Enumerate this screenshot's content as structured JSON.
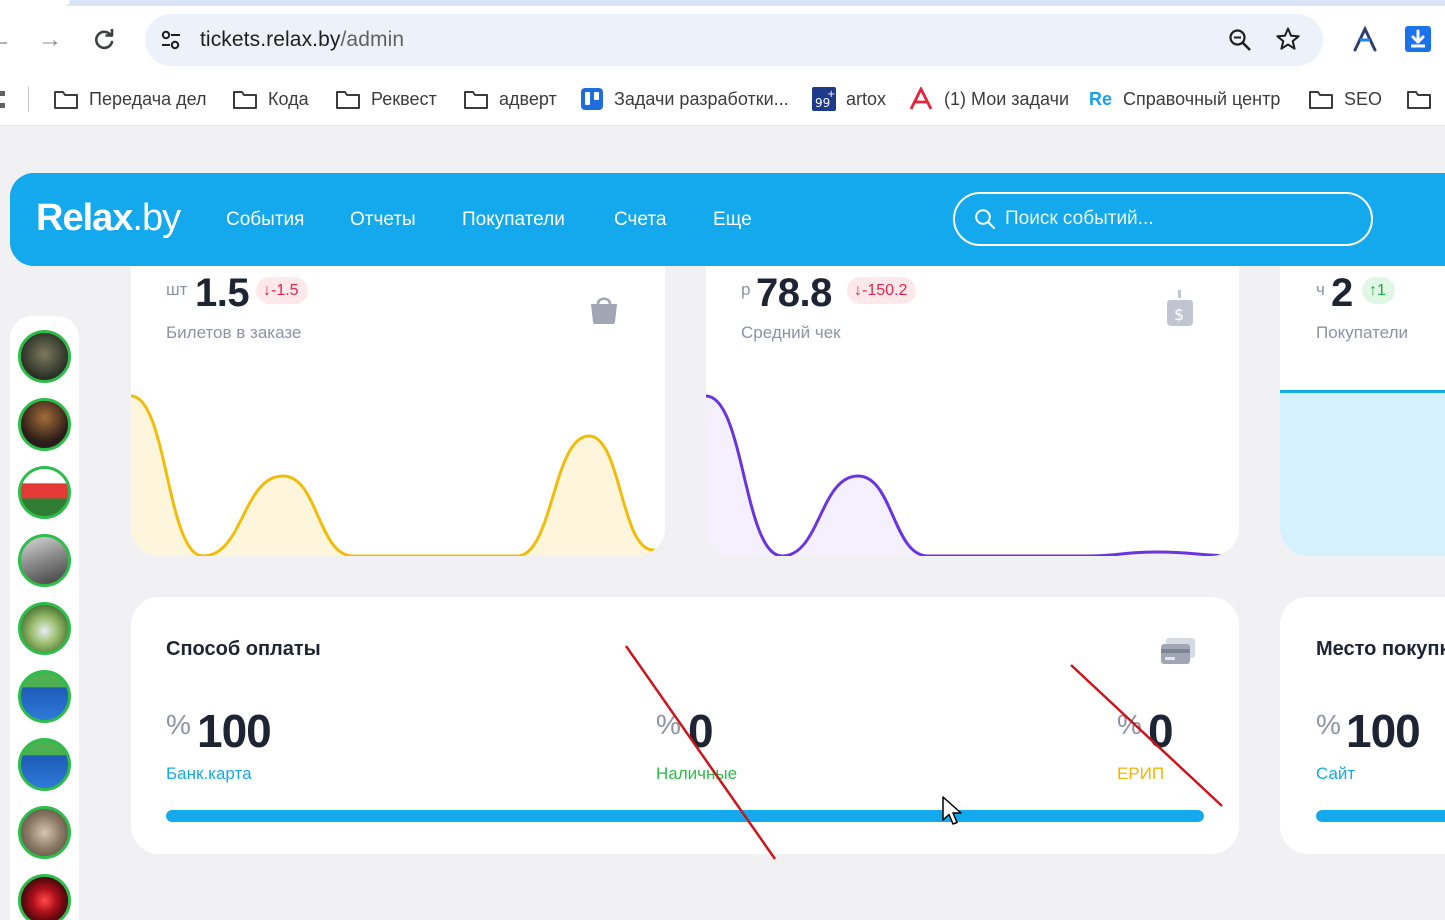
{
  "browser": {
    "url_host": "tickets.relax.by",
    "url_path": "/admin",
    "bookmarks": [
      {
        "label": "Передача дел",
        "icon": "folder-icon"
      },
      {
        "label": "Кода",
        "icon": "folder-icon"
      },
      {
        "label": "Реквест",
        "icon": "folder-icon"
      },
      {
        "label": "адверт",
        "icon": "folder-icon"
      },
      {
        "label": "Задачи разработки...",
        "icon": "trello-icon"
      },
      {
        "label": "artox",
        "icon": "artox-99-icon"
      },
      {
        "label": "(1) Мои задачи",
        "icon": "asana-a-icon"
      },
      {
        "label": "Справочный центр",
        "icon": "re-logo-icon"
      },
      {
        "label": "SEO",
        "icon": "folder-icon"
      }
    ]
  },
  "header": {
    "logo_main": "Relax",
    "logo_suffix": ".by",
    "nav": [
      "События",
      "Отчеты",
      "Покупатели",
      "Счета",
      "Еще"
    ],
    "search_placeholder": "Поиск событий..."
  },
  "stats": {
    "tickets": {
      "unit": "шт",
      "value": "1.5",
      "delta": "-1.5",
      "label": "Билетов в заказе",
      "icon": "shopping-bag-icon"
    },
    "avg_check": {
      "unit": "р",
      "value": "78.8",
      "delta": "-150.2",
      "label": "Средний чек",
      "icon": "money-bag-icon"
    },
    "buyers": {
      "unit": "ч",
      "value": "2",
      "delta": "1",
      "label": "Покупатели"
    }
  },
  "payment": {
    "title": "Способ оплаты",
    "icon": "credit-card-icon",
    "items": [
      {
        "unit": "%",
        "value": "100",
        "label": "Банк.карта",
        "color": "#13a9ec"
      },
      {
        "unit": "%",
        "value": "0",
        "label": "Наличные",
        "color": "#2ebd4a"
      },
      {
        "unit": "%",
        "value": "0",
        "label": "ЕРИП",
        "color": "#f2b600"
      }
    ],
    "progress_fraction": 1.0
  },
  "place": {
    "title": "Место покупки",
    "unit": "%",
    "value": "100",
    "label": "Сайт",
    "progress_fraction": 1.0
  },
  "colors": {
    "brand": "#13a9ec",
    "tickets_line": "#f2bd0a",
    "avg_line": "#6a35e0",
    "annotation_red": "#c8161d"
  }
}
